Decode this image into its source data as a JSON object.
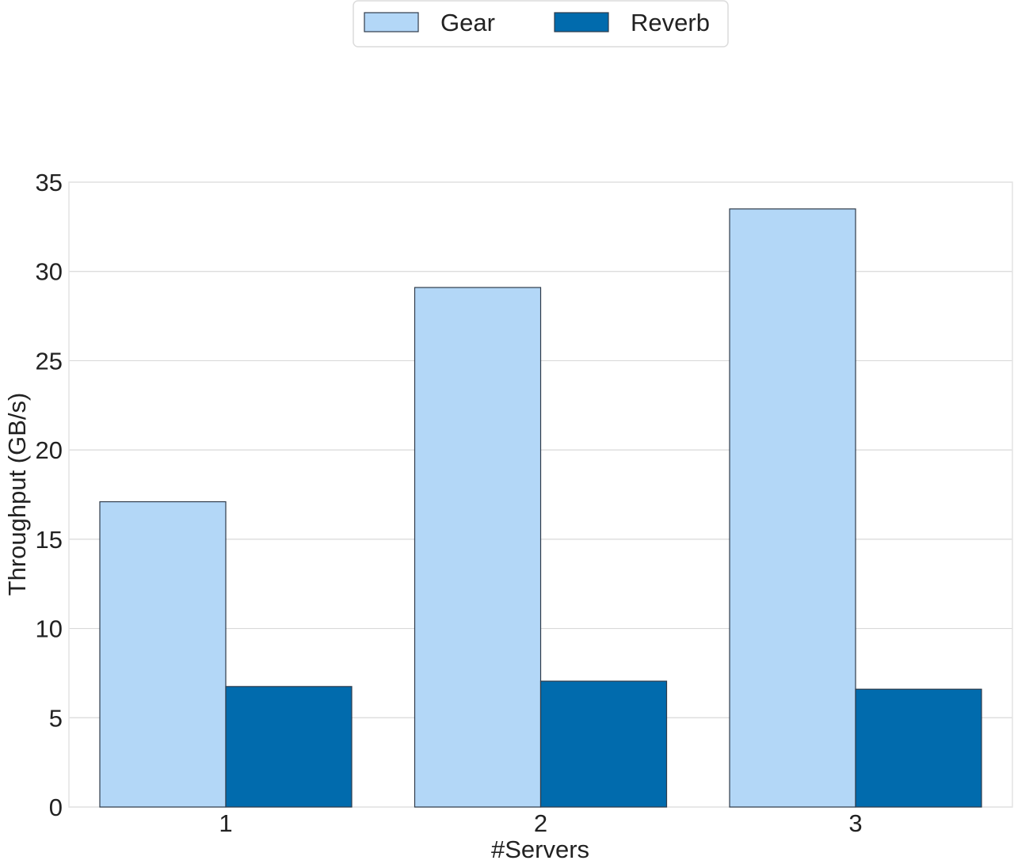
{
  "chart_data": {
    "type": "bar",
    "categories": [
      "1",
      "2",
      "3"
    ],
    "series": [
      {
        "name": "Gear",
        "values": [
          17.1,
          29.1,
          33.5
        ],
        "color": "#b3d7f7"
      },
      {
        "name": "Reverb",
        "values": [
          6.75,
          7.05,
          6.6
        ],
        "color": "#016bad"
      }
    ],
    "xlabel": "#Servers",
    "ylabel": "Throughput (GB/s)",
    "ylim": [
      0,
      35
    ],
    "yticks": [
      0,
      5,
      10,
      15,
      20,
      25,
      30,
      35
    ],
    "grid": true,
    "legend_position": "top-center",
    "colors": {
      "gridline": "#d9d9d9",
      "bar_edge": "#2f3b4a",
      "text": "#222222"
    }
  }
}
